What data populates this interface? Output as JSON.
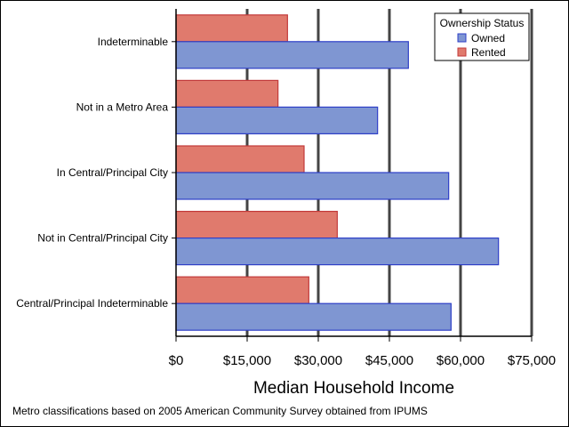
{
  "chart_data": {
    "type": "bar",
    "orientation": "horizontal",
    "categories": [
      "Indeterminable",
      "Not in a Metro Area",
      "In Central/Principal City",
      "Not in Central/Principal City",
      "Central/Principal Indeterminable"
    ],
    "series": [
      {
        "name": "Rented",
        "values": [
          23500,
          21500,
          27000,
          34000,
          28000
        ],
        "color": "#e07a6d"
      },
      {
        "name": "Owned",
        "values": [
          49000,
          42500,
          57500,
          68000,
          58000
        ],
        "color": "#7f96d2"
      }
    ],
    "xlabel": "Median Household Income",
    "xlim": [
      0,
      75000
    ],
    "xticks": [
      0,
      15000,
      30000,
      45000,
      60000,
      75000
    ],
    "xtick_labels": [
      "$0",
      "$15,000",
      "$30,000",
      "$45,000",
      "$60,000",
      "$75,000"
    ],
    "grid": true,
    "legend": {
      "title": "Ownership Status",
      "placement": "top-right",
      "entries": [
        "Owned",
        "Rented"
      ]
    },
    "footnote": "Metro classifications based on 2005 American Community Survey obtained from IPUMS"
  }
}
